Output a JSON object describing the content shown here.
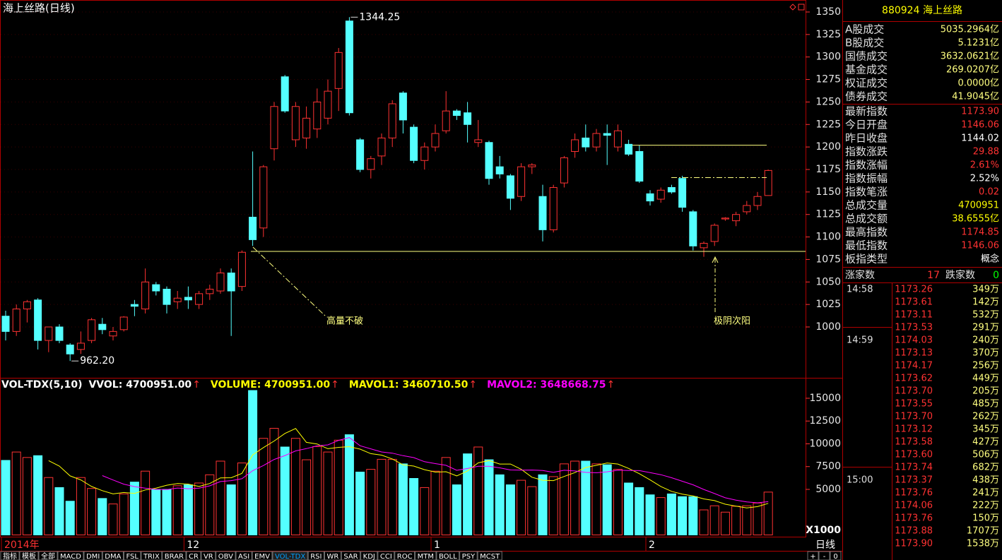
{
  "chart_data": [
    {
      "type": "candlestick",
      "title": "海上丝路(日线)",
      "categories": [
        "2014年",
        null,
        null,
        null,
        null,
        null,
        null,
        null,
        null,
        null,
        null,
        null,
        null,
        null,
        null,
        null,
        null,
        "12",
        null,
        null,
        null,
        null,
        null,
        null,
        null,
        null,
        null,
        null,
        null,
        null,
        null,
        null,
        null,
        null,
        null,
        null,
        null,
        null,
        null,
        null,
        "1",
        null,
        null,
        null,
        null,
        null,
        null,
        null,
        null,
        null,
        null,
        null,
        null,
        null,
        null,
        null,
        null,
        null,
        null,
        null,
        "2",
        null,
        null,
        null,
        null,
        null,
        null,
        null,
        null,
        null,
        null,
        null
      ],
      "open": [
        1012,
        995,
        1020,
        1030,
        985,
        1000,
        980,
        975,
        985,
        1003,
        990,
        997,
        1025,
        1020,
        1047,
        1042,
        1028,
        1033,
        1025,
        1037,
        1040,
        1060,
        1045,
        1122,
        1110,
        1198,
        1278,
        1208,
        1210,
        1220,
        1232,
        1265,
        1340,
        1208,
        1175,
        1190,
        1210,
        1260,
        1222,
        1185,
        1200,
        1218,
        1240,
        1238,
        1205,
        1205,
        1178,
        1168,
        1145,
        1178,
        1145,
        1108,
        1160,
        1195,
        1210,
        1200,
        1215,
        1200,
        1203,
        1195,
        1148,
        1142,
        1155,
        1165,
        1128,
        1088,
        1095,
        1120,
        1118,
        1128,
        1135,
        1146.06
      ],
      "high": [
        1018,
        1025,
        1030,
        1032,
        1000,
        1003,
        982,
        995,
        1010,
        1010,
        1000,
        1012,
        1030,
        1065,
        1050,
        1045,
        1040,
        1045,
        1040,
        1047,
        1065,
        1065,
        1085,
        1195,
        1180,
        1250,
        1280,
        1250,
        1245,
        1265,
        1275,
        1310,
        1344.25,
        1210,
        1190,
        1215,
        1252,
        1262,
        1225,
        1205,
        1225,
        1262,
        1242,
        1250,
        1230,
        1207,
        1190,
        1170,
        1182,
        1182,
        1158,
        1158,
        1190,
        1215,
        1225,
        1220,
        1225,
        1225,
        1208,
        1202,
        1152,
        1155,
        1158,
        1168,
        1130,
        1095,
        1115,
        1122,
        1128,
        1140,
        1150,
        1174.85
      ],
      "low": [
        985,
        990,
        1005,
        975,
        972,
        982,
        962.2,
        970,
        982,
        992,
        985,
        995,
        1012,
        1015,
        1035,
        1015,
        1020,
        1020,
        1020,
        1030,
        1037,
        990,
        1040,
        1090,
        1100,
        1185,
        1238,
        1200,
        1198,
        1210,
        1225,
        1240,
        1235,
        1172,
        1165,
        1180,
        1200,
        1215,
        1182,
        1175,
        1195,
        1215,
        1230,
        1205,
        1200,
        1158,
        1165,
        1130,
        1140,
        1170,
        1095,
        1105,
        1155,
        1188,
        1195,
        1195,
        1180,
        1195,
        1190,
        1160,
        1135,
        1138,
        1148,
        1128,
        1085,
        1078,
        1090,
        1118,
        1112,
        1125,
        1130,
        1146.06
      ],
      "close": [
        995,
        1020,
        1028,
        985,
        1000,
        985,
        970,
        982,
        1008,
        997,
        995,
        1011,
        1023,
        1050,
        1040,
        1025,
        1032,
        1030,
        1037,
        1042,
        1060,
        1040,
        1083,
        1097,
        1178,
        1245,
        1240,
        1245,
        1232,
        1250,
        1262,
        1305,
        1238,
        1175,
        1187,
        1210,
        1248,
        1230,
        1185,
        1200,
        1215,
        1240,
        1235,
        1225,
        1208,
        1165,
        1170,
        1143,
        1178,
        1180,
        1108,
        1155,
        1188,
        1208,
        1200,
        1215,
        1213,
        1218,
        1192,
        1162,
        1140,
        1152,
        1150,
        1133,
        1090,
        1093,
        1113,
        1121,
        1125,
        1135,
        1145,
        1173.9
      ],
      "up_color": "#ff3232",
      "down_color": "#54ffff",
      "ylim": [
        943.5,
        1359.4
      ],
      "yticks": [
        1000,
        1025,
        1050,
        1075,
        1100,
        1125,
        1150,
        1175,
        1200,
        1225,
        1250,
        1275,
        1300,
        1325,
        1350
      ],
      "extreme_labels": [
        {
          "value": 1344.25,
          "label": "1344.25"
        },
        {
          "value": 962.2,
          "label": "962.20"
        }
      ],
      "hlines": [
        {
          "value": 1084,
          "style": "solid"
        },
        {
          "value": 1202,
          "style": "solid"
        },
        {
          "value": 1166,
          "style": "dashdot"
        }
      ],
      "annotations": [
        "高量不破",
        "极阴次阳"
      ],
      "period_label": "日线"
    },
    {
      "type": "volume",
      "header": [
        {
          "text": "VOL-TDX(5,10)",
          "color": "#ffffff"
        },
        {
          "text": "VVOL: 4700951.00",
          "color": "#ffffff"
        },
        {
          "text": "VOLUME: 4700951.00",
          "color": "#ffff00"
        }
      ],
      "arrow": "↑",
      "values": [
        8180,
        9100,
        8500,
        8700,
        6300,
        5200,
        3700,
        6300,
        5100,
        4000,
        3400,
        4500,
        5800,
        7000,
        5000,
        5000,
        5400,
        5500,
        5700,
        6600,
        8100,
        5500,
        7900,
        15850,
        10600,
        11700,
        9650,
        10600,
        8250,
        9700,
        9100,
        10400,
        11000,
        6900,
        7200,
        8300,
        8300,
        7800,
        6200,
        5200,
        7000,
        8500,
        5500,
        8900,
        9650,
        8250,
        6600,
        5500,
        6000,
        5300,
        6600,
        6400,
        7800,
        8100,
        8100,
        7800,
        7700,
        7200,
        5700,
        5200,
        4400,
        4100,
        4500,
        4200,
        4200,
        2750,
        3200,
        2500,
        3150,
        3200,
        3500,
        4700.951
      ],
      "series": [
        {
          "name": "MAVOL1: 3460710.50",
          "color": "#ffff00",
          "values": [
            null,
            null,
            null,
            null,
            8156,
            7560,
            6480,
            6040,
            5320,
            4860,
            4500,
            4660,
            4560,
            4940,
            5140,
            5460,
            5640,
            5580,
            5320,
            5640,
            6260,
            6280,
            6760,
            8790,
            9590,
            10310,
            11140,
            11680,
            10160,
            9980,
            9460,
            9610,
            9690,
            9420,
            8920,
            8760,
            8340,
            7700,
            7560,
            7160,
            6900,
            6940,
            6480,
            7020,
            7910,
            8160,
            7780,
            7780,
            7200,
            6330,
            6000,
            5960,
            6420,
            6840,
            7400,
            7640,
            7900,
            7780,
            7300,
            6720,
            6040,
            5320,
            4780,
            4480,
            4280,
            3950,
            3770,
            3370,
            3160,
            2960,
            3110,
            3460.7105
          ]
        },
        {
          "name": "MAVOL2: 3648668.75",
          "color": "#ff00ff",
          "values": [
            null,
            null,
            null,
            null,
            null,
            null,
            null,
            null,
            null,
            6508,
            6030,
            5570,
            5300,
            5130,
            5000,
            4980,
            5150,
            5070,
            5130,
            5390,
            5860,
            5960,
            6170,
            7055,
            7615,
            8285,
            8710,
            9220,
            9475,
            9785,
            9885,
            10375,
            10685,
            9790,
            9450,
            9110,
            8975,
            8695,
            8490,
            8040,
            7830,
            7640,
            7090,
            7290,
            7535,
            7530,
            7360,
            7130,
            7110,
            7120,
            7080,
            6870,
            7100,
            7020,
            6865,
            6820,
            6930,
            7100,
            7070,
            7060,
            6840,
            6610,
            6280,
            5890,
            5500,
            4995,
            4545,
            4075,
            3820,
            3620,
            3530,
            3648.66875
          ]
        }
      ],
      "ylim": [
        0,
        16470
      ],
      "yticks": [
        5000,
        7500,
        10000,
        12500,
        15000
      ],
      "unit_label": "X1000"
    }
  ],
  "side_panel": {
    "header": "880924 海上丝路",
    "turnover": [
      [
        "A股成交",
        "5035.2964亿"
      ],
      [
        "B股成交",
        "5.1231亿"
      ],
      [
        "国债成交",
        "3632.0621亿"
      ],
      [
        "基金成交",
        "269.0207亿"
      ],
      [
        "权证成交",
        "0.0000亿"
      ],
      [
        "债券成交",
        "41.9045亿"
      ]
    ],
    "stats": [
      [
        "最新指数",
        "1173.90",
        "red"
      ],
      [
        "今日开盘",
        "1146.06",
        "red"
      ],
      [
        "昨日收盘",
        "1144.02",
        "white"
      ],
      [
        "指数涨跌",
        "29.88",
        "red"
      ],
      [
        "指数涨幅",
        "2.61%",
        "red"
      ],
      [
        "指数振幅",
        "2.52%",
        "white"
      ],
      [
        "指数笔涨",
        "0.02",
        "red"
      ],
      [
        "总成交量",
        "4700951",
        "yellow"
      ],
      [
        "总成交额",
        "38.6555亿",
        "yellow"
      ],
      [
        "最高指数",
        "1174.85",
        "red"
      ],
      [
        "最低指数",
        "1146.06",
        "red"
      ],
      [
        "板指类型",
        "概念",
        "white"
      ]
    ],
    "breadth": [
      "涨家数",
      "17",
      "跌家数",
      "0"
    ],
    "ticks": [
      {
        "time": "14:58",
        "rows": [
          [
            "1173.26",
            "349万"
          ],
          [
            "1173.61",
            "142万"
          ],
          [
            "1173.11",
            "532万"
          ],
          [
            "1173.53",
            "291万"
          ]
        ]
      },
      {
        "time": "14:59",
        "rows": [
          [
            "1174.03",
            "240万"
          ],
          [
            "1173.13",
            "370万"
          ],
          [
            "1174.17",
            "256万"
          ],
          [
            "1173.62",
            "449万"
          ],
          [
            "1173.70",
            "205万"
          ],
          [
            "1173.55",
            "485万"
          ],
          [
            "1173.70",
            "262万"
          ],
          [
            "1173.12",
            "345万"
          ],
          [
            "1173.58",
            "427万"
          ],
          [
            "1173.60",
            "506万"
          ],
          [
            "1173.74",
            "682万"
          ]
        ]
      },
      {
        "time": "15:00",
        "rows": [
          [
            "1173.37",
            "438万"
          ],
          [
            "1173.76",
            "241万"
          ],
          [
            "1174.06",
            "222万"
          ],
          [
            "1173.76",
            "150万"
          ],
          [
            "1173.88",
            "1707万"
          ],
          [
            "1173.90",
            "1538万"
          ]
        ]
      }
    ]
  },
  "tabs": [
    "指标",
    "模板",
    "全部",
    "MACD",
    "DMI",
    "DMA",
    "FSL",
    "TRIX",
    "BRAR",
    "CR",
    "VR",
    "OBV",
    "ASI",
    "EMV",
    "VOL-TDX",
    "RSI",
    "WR",
    "SAR",
    "KDJ",
    "CCI",
    "ROC",
    "MTM",
    "BOLL",
    "PSY",
    "MCST"
  ],
  "active_tab": "VOL-TDX",
  "zoom_buttons": [
    "+",
    "-",
    "0"
  ]
}
